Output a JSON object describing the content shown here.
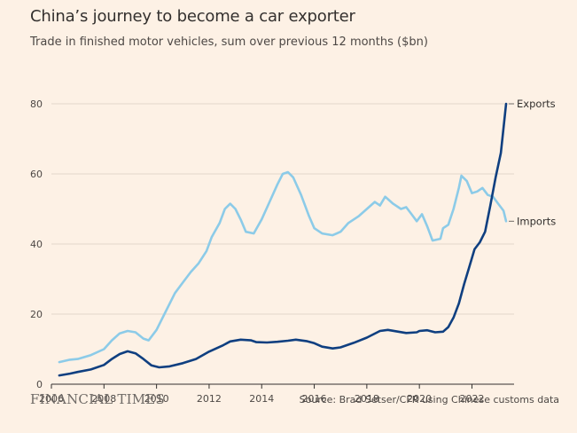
{
  "header": {
    "title": "China’s journey to become a car exporter",
    "subtitle": "Trade in finished motor vehicles, sum over previous 12 months ($bn)"
  },
  "footer": {
    "brand": "FINANCIAL TIMES",
    "source": "Source: Brad Setser/CFR using Chinese customs data"
  },
  "chart_data": {
    "type": "line",
    "title": "China’s journey to become a car exporter",
    "subtitle": "Trade in finished motor vehicles, sum over previous 12 months ($bn)",
    "xlabel": "",
    "ylabel": "",
    "xlim": [
      2006,
      2023.4
    ],
    "ylim": [
      0,
      80
    ],
    "x_ticks": [
      2006,
      2008,
      2010,
      2012,
      2014,
      2016,
      2018,
      2020,
      2022
    ],
    "y_ticks": [
      0,
      20,
      40,
      60,
      80
    ],
    "grid": "horizontal",
    "colors": {
      "Exports": "#0f3f80",
      "Imports": "#8ccbe8",
      "grid": "#e3d6cb",
      "axis": "#33302e"
    },
    "series": [
      {
        "name": "Exports",
        "label_position": "end",
        "points": [
          [
            2006.3,
            2.5
          ],
          [
            2006.7,
            3.0
          ],
          [
            2007.0,
            3.5
          ],
          [
            2007.5,
            4.2
          ],
          [
            2008.0,
            5.5
          ],
          [
            2008.3,
            7.2
          ],
          [
            2008.6,
            8.6
          ],
          [
            2008.9,
            9.4
          ],
          [
            2009.2,
            8.8
          ],
          [
            2009.5,
            7.2
          ],
          [
            2009.8,
            5.4
          ],
          [
            2010.1,
            4.8
          ],
          [
            2010.5,
            5.1
          ],
          [
            2011.0,
            6.0
          ],
          [
            2011.5,
            7.2
          ],
          [
            2012.0,
            9.3
          ],
          [
            2012.5,
            11.0
          ],
          [
            2012.8,
            12.2
          ],
          [
            2013.2,
            12.7
          ],
          [
            2013.6,
            12.5
          ],
          [
            2013.8,
            12.0
          ],
          [
            2014.2,
            11.9
          ],
          [
            2014.6,
            12.1
          ],
          [
            2015.0,
            12.4
          ],
          [
            2015.3,
            12.7
          ],
          [
            2015.7,
            12.3
          ],
          [
            2016.0,
            11.7
          ],
          [
            2016.3,
            10.7
          ],
          [
            2016.7,
            10.2
          ],
          [
            2017.0,
            10.5
          ],
          [
            2017.5,
            11.8
          ],
          [
            2018.0,
            13.3
          ],
          [
            2018.5,
            15.2
          ],
          [
            2018.8,
            15.5
          ],
          [
            2019.2,
            15.0
          ],
          [
            2019.5,
            14.6
          ],
          [
            2019.9,
            14.8
          ],
          [
            2020.0,
            15.2
          ],
          [
            2020.3,
            15.4
          ],
          [
            2020.6,
            14.8
          ],
          [
            2020.9,
            15.0
          ],
          [
            2021.1,
            16.3
          ],
          [
            2021.3,
            19.0
          ],
          [
            2021.5,
            23.0
          ],
          [
            2021.7,
            28.5
          ],
          [
            2021.9,
            33.5
          ],
          [
            2022.1,
            38.5
          ],
          [
            2022.3,
            40.5
          ],
          [
            2022.5,
            43.5
          ],
          [
            2022.7,
            51.0
          ],
          [
            2022.9,
            59.0
          ],
          [
            2023.1,
            66.0
          ],
          [
            2023.3,
            80.0
          ]
        ]
      },
      {
        "name": "Imports",
        "label_position": "end",
        "points": [
          [
            2006.3,
            6.3
          ],
          [
            2006.7,
            7.0
          ],
          [
            2007.0,
            7.2
          ],
          [
            2007.5,
            8.3
          ],
          [
            2008.0,
            10.0
          ],
          [
            2008.3,
            12.5
          ],
          [
            2008.6,
            14.5
          ],
          [
            2008.9,
            15.2
          ],
          [
            2009.2,
            14.8
          ],
          [
            2009.5,
            13.0
          ],
          [
            2009.7,
            12.5
          ],
          [
            2010.0,
            15.5
          ],
          [
            2010.3,
            20.0
          ],
          [
            2010.7,
            26.0
          ],
          [
            2011.0,
            29.0
          ],
          [
            2011.3,
            32.0
          ],
          [
            2011.6,
            34.5
          ],
          [
            2011.9,
            38.0
          ],
          [
            2012.1,
            42.0
          ],
          [
            2012.4,
            46.0
          ],
          [
            2012.6,
            50.0
          ],
          [
            2012.8,
            51.5
          ],
          [
            2013.0,
            50.0
          ],
          [
            2013.2,
            47.0
          ],
          [
            2013.4,
            43.5
          ],
          [
            2013.7,
            43.0
          ],
          [
            2014.0,
            47.0
          ],
          [
            2014.3,
            52.0
          ],
          [
            2014.6,
            57.0
          ],
          [
            2014.8,
            60.0
          ],
          [
            2015.0,
            60.5
          ],
          [
            2015.2,
            59.0
          ],
          [
            2015.5,
            54.0
          ],
          [
            2015.8,
            48.0
          ],
          [
            2016.0,
            44.5
          ],
          [
            2016.3,
            43.0
          ],
          [
            2016.7,
            42.5
          ],
          [
            2017.0,
            43.5
          ],
          [
            2017.3,
            46.0
          ],
          [
            2017.7,
            48.0
          ],
          [
            2018.0,
            50.0
          ],
          [
            2018.3,
            52.0
          ],
          [
            2018.5,
            51.0
          ],
          [
            2018.7,
            53.5
          ],
          [
            2019.0,
            51.5
          ],
          [
            2019.3,
            50.0
          ],
          [
            2019.5,
            50.5
          ],
          [
            2019.7,
            48.5
          ],
          [
            2019.9,
            46.5
          ],
          [
            2020.1,
            48.5
          ],
          [
            2020.3,
            45.0
          ],
          [
            2020.5,
            41.0
          ],
          [
            2020.8,
            41.5
          ],
          [
            2020.9,
            44.5
          ],
          [
            2021.1,
            45.5
          ],
          [
            2021.3,
            50.0
          ],
          [
            2021.5,
            56.0
          ],
          [
            2021.6,
            59.5
          ],
          [
            2021.8,
            58.0
          ],
          [
            2022.0,
            54.5
          ],
          [
            2022.2,
            55.0
          ],
          [
            2022.4,
            56.0
          ],
          [
            2022.6,
            54.0
          ],
          [
            2022.8,
            53.5
          ],
          [
            2023.0,
            51.5
          ],
          [
            2023.2,
            49.5
          ],
          [
            2023.3,
            46.5
          ]
        ]
      }
    ]
  }
}
